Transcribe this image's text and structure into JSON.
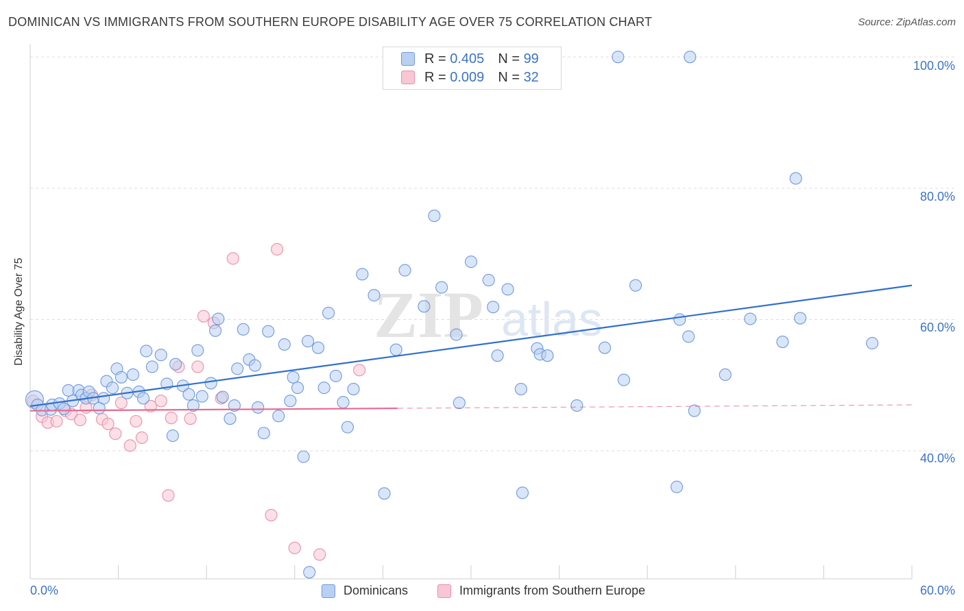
{
  "title": "DOMINICAN VS IMMIGRANTS FROM SOUTHERN EUROPE DISABILITY AGE OVER 75 CORRELATION CHART",
  "source": "Source: ZipAtlas.com",
  "watermark": {
    "zip": "ZIP",
    "atlas": "atlas"
  },
  "colors": {
    "blue_fill": "#b9d0f2",
    "blue_stroke": "#6f9ad8",
    "blue_line": "#2f6fd0",
    "pink_fill": "#f8c6d4",
    "pink_stroke": "#e990ab",
    "pink_line": "#e8688f",
    "tick_label": "#3b73c6",
    "grid": "#dcdcdc"
  },
  "legend": {
    "rows": [
      {
        "r_label": "R = ",
        "r_value": "0.405",
        "n_label": "N = ",
        "n_value": "99"
      },
      {
        "r_label": "R = ",
        "r_value": "0.009",
        "n_label": "N = ",
        "n_value": "32"
      }
    ]
  },
  "bottom_legend": {
    "series1": "Dominicans",
    "series2": "Immigrants from Southern Europe"
  },
  "chart_data": {
    "type": "scatter",
    "title": "DOMINICAN VS IMMIGRANTS FROM SOUTHERN EUROPE DISABILITY AGE OVER 75 CORRELATION CHART",
    "xlabel": "",
    "ylabel": "Disability Age Over 75",
    "xlim": [
      0,
      60
    ],
    "ylim": [
      20.5,
      102
    ],
    "x_tick_labels": [
      "0.0%",
      "60.0%"
    ],
    "y_ticks": [
      40,
      60,
      80,
      100
    ],
    "y_tick_labels": [
      "40.0%",
      "60.0%",
      "80.0%",
      "100.0%"
    ],
    "grid": true,
    "legend_position": "top-center",
    "series": [
      {
        "name": "Dominicans",
        "r": 0.405,
        "n": 99,
        "trend": {
          "x": [
            0,
            60
          ],
          "y": [
            46.8,
            65.2
          ],
          "dashed_after": null
        },
        "points": [
          [
            0.3,
            47.8
          ],
          [
            0.5,
            47.0
          ],
          [
            0.8,
            46.2
          ],
          [
            1.4,
            46.3
          ],
          [
            1.5,
            47.0
          ],
          [
            2.0,
            47.2
          ],
          [
            2.3,
            46.4
          ],
          [
            2.6,
            49.2
          ],
          [
            2.9,
            47.6
          ],
          [
            3.3,
            49.2
          ],
          [
            3.5,
            48.5
          ],
          [
            3.8,
            48.0
          ],
          [
            4.0,
            49.0
          ],
          [
            4.3,
            48.0
          ],
          [
            4.7,
            46.5
          ],
          [
            5.0,
            48.0
          ],
          [
            5.2,
            50.6
          ],
          [
            5.6,
            49.6
          ],
          [
            5.9,
            52.5
          ],
          [
            6.2,
            51.2
          ],
          [
            6.6,
            48.8
          ],
          [
            7.0,
            51.6
          ],
          [
            7.4,
            49.0
          ],
          [
            7.7,
            48.0
          ],
          [
            7.9,
            55.2
          ],
          [
            8.3,
            52.8
          ],
          [
            8.9,
            54.6
          ],
          [
            9.3,
            50.2
          ],
          [
            9.7,
            42.3
          ],
          [
            9.9,
            53.2
          ],
          [
            10.4,
            49.9
          ],
          [
            10.8,
            48.6
          ],
          [
            11.1,
            46.9
          ],
          [
            11.4,
            55.3
          ],
          [
            11.7,
            48.3
          ],
          [
            12.3,
            50.3
          ],
          [
            12.6,
            58.3
          ],
          [
            12.8,
            60.1
          ],
          [
            13.1,
            48.2
          ],
          [
            13.6,
            44.9
          ],
          [
            13.9,
            46.9
          ],
          [
            14.1,
            52.5
          ],
          [
            14.5,
            58.5
          ],
          [
            14.9,
            53.9
          ],
          [
            15.3,
            53.0
          ],
          [
            15.5,
            46.6
          ],
          [
            15.9,
            42.7
          ],
          [
            16.2,
            58.2
          ],
          [
            16.9,
            45.3
          ],
          [
            17.3,
            56.2
          ],
          [
            17.7,
            47.6
          ],
          [
            17.9,
            51.2
          ],
          [
            18.2,
            49.6
          ],
          [
            18.6,
            39.1
          ],
          [
            18.9,
            56.7
          ],
          [
            19.0,
            21.5
          ],
          [
            19.6,
            55.7
          ],
          [
            20.0,
            49.6
          ],
          [
            20.3,
            61.0
          ],
          [
            20.8,
            51.4
          ],
          [
            21.3,
            47.4
          ],
          [
            21.6,
            43.6
          ],
          [
            22.0,
            49.4
          ],
          [
            22.6,
            66.9
          ],
          [
            23.4,
            63.7
          ],
          [
            24.1,
            33.5
          ],
          [
            24.9,
            55.4
          ],
          [
            25.5,
            67.5
          ],
          [
            26.8,
            62.0
          ],
          [
            27.5,
            75.8
          ],
          [
            28.0,
            64.9
          ],
          [
            29.0,
            57.7
          ],
          [
            29.2,
            47.3
          ],
          [
            30.0,
            68.8
          ],
          [
            31.2,
            66.0
          ],
          [
            31.5,
            61.9
          ],
          [
            31.8,
            54.5
          ],
          [
            32.5,
            64.6
          ],
          [
            33.4,
            49.4
          ],
          [
            33.5,
            33.6
          ],
          [
            34.5,
            55.6
          ],
          [
            34.7,
            54.7
          ],
          [
            35.2,
            54.5
          ],
          [
            37.2,
            46.9
          ],
          [
            39.1,
            55.7
          ],
          [
            40.0,
            100.0
          ],
          [
            40.4,
            50.8
          ],
          [
            41.2,
            65.2
          ],
          [
            44.0,
            34.5
          ],
          [
            44.2,
            60.0
          ],
          [
            44.8,
            57.4
          ],
          [
            44.9,
            100.0
          ],
          [
            45.2,
            46.1
          ],
          [
            47.3,
            51.6
          ],
          [
            49.0,
            60.1
          ],
          [
            51.2,
            56.6
          ],
          [
            52.1,
            81.5
          ],
          [
            52.4,
            60.2
          ],
          [
            57.3,
            56.4
          ]
        ]
      },
      {
        "name": "Immigrants from Southern Europe",
        "r": 0.009,
        "n": 32,
        "trend": {
          "x": [
            0,
            60
          ],
          "y": [
            46.1,
            47.0
          ],
          "dashed_after": 25
        },
        "points": [
          [
            0.2,
            47.6
          ],
          [
            0.8,
            45.2
          ],
          [
            1.2,
            44.3
          ],
          [
            1.8,
            44.5
          ],
          [
            2.4,
            46.1
          ],
          [
            2.8,
            45.6
          ],
          [
            3.4,
            44.7
          ],
          [
            3.8,
            46.6
          ],
          [
            4.2,
            48.5
          ],
          [
            4.9,
            44.8
          ],
          [
            5.3,
            44.1
          ],
          [
            5.8,
            42.6
          ],
          [
            6.2,
            47.3
          ],
          [
            6.8,
            40.8
          ],
          [
            7.2,
            44.5
          ],
          [
            7.6,
            42.0
          ],
          [
            8.2,
            46.8
          ],
          [
            8.9,
            47.6
          ],
          [
            9.4,
            33.2
          ],
          [
            9.6,
            45.0
          ],
          [
            10.1,
            52.8
          ],
          [
            10.9,
            44.9
          ],
          [
            11.4,
            52.8
          ],
          [
            11.8,
            60.5
          ],
          [
            12.5,
            59.5
          ],
          [
            13.0,
            48.0
          ],
          [
            13.8,
            69.3
          ],
          [
            16.4,
            30.2
          ],
          [
            16.8,
            70.7
          ],
          [
            18.0,
            25.2
          ],
          [
            19.7,
            24.2
          ],
          [
            22.4,
            52.3
          ]
        ]
      }
    ]
  }
}
